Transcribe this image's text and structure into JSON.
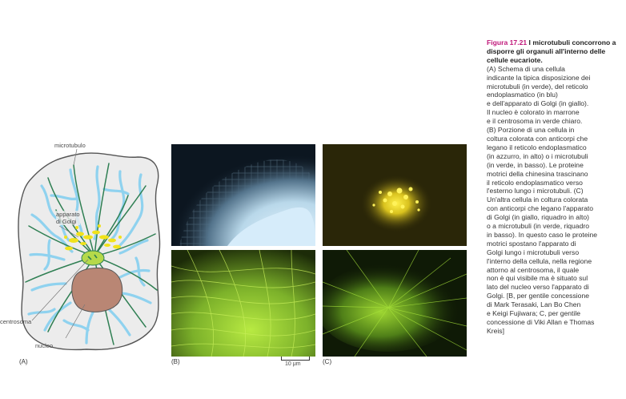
{
  "diagram": {
    "labels": {
      "microtubule": "microtubulo",
      "golgi_line1": "apparato",
      "golgi_line2": "di Golgi",
      "centrosome": "centrosoma",
      "nucleus": "nucleo"
    },
    "panel_a": "(A)",
    "colors": {
      "microtubule": "#2f7f53",
      "er": "#8fd2ef",
      "golgi": "#f1e21a",
      "nucleus": "#b98674",
      "centrosome": "#b5d94a",
      "cell_fill": "#ececec"
    }
  },
  "micrographs": {
    "panel_b": "(B)",
    "panel_c": "(C)",
    "scale_bar": "10 μm"
  },
  "caption": {
    "figure_number": "Figura 17.21",
    "title": "I microtubuli concorrono a disporre gli organuli all'interno delle cellule eucariote.",
    "lines": [
      "(A) Schema di una cellula",
      "indicante la tipica disposizione dei",
      "microtubuli (in verde), del reticolo",
      "endoplasmatico (in blu)",
      "e dell'apparato di Golgi (in giallo).",
      "Il nucleo è colorato in marrone",
      "e il centrosoma in verde chiaro.",
      "(B) Porzione di una cellula in",
      "coltura colorata con anticorpi che",
      "legano il reticolo endoplasmatico",
      "(in azzurro, in alto) o i microtubuli",
      "(in verde, in basso). Le proteine",
      "motrici della chinesina trascinano",
      "il reticolo endoplasmatico verso",
      "l'esterno lungo i microtubuli. (C)",
      "Un'altra cellula in coltura colorata",
      "con anticorpi che legano l'apparato",
      "di Golgi (in giallo, riquadro in alto)",
      "o a microtubuli (in verde, riquadro",
      "in basso). In questo caso le proteine",
      "motrici spostano l'apparato di",
      "Golgi lungo i microtubuli verso",
      "l'interno della cellula, nella regione",
      "attorno al centrosoma, il quale",
      "non è qui visibile ma è situato sul",
      "lato del nucleo verso l'apparato di",
      "Golgi. [B, per gentile concessione",
      "di Mark Terasaki, Lan Bo Chen",
      "e Keigi Fujiwara; C, per gentile",
      "concessione di Viki Allan e Thomas",
      "Kreis]"
    ]
  }
}
